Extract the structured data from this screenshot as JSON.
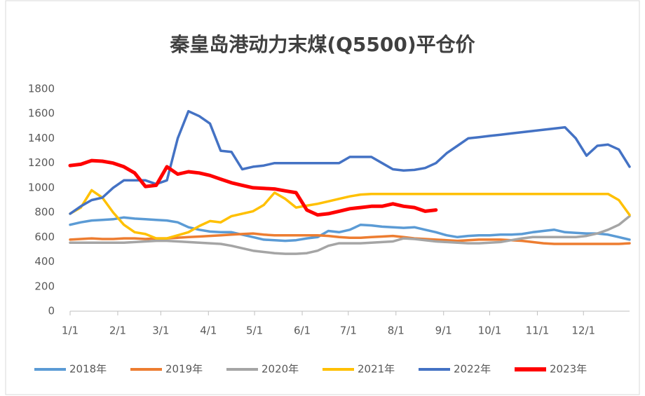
{
  "chart_data": {
    "type": "line",
    "title": "秦皇岛港动力末煤(Q5500)平仓价",
    "x": [
      0,
      7,
      14,
      21,
      28,
      35,
      42,
      49,
      56,
      63,
      70,
      77,
      84,
      91,
      98,
      105,
      112,
      119,
      126,
      133,
      140,
      147,
      154,
      161,
      168,
      175,
      182,
      189,
      196,
      203,
      210,
      217,
      224,
      231,
      238,
      245,
      252,
      259,
      266,
      273,
      280,
      287,
      294,
      301,
      308,
      315,
      322,
      329,
      336,
      343,
      350,
      357,
      364
    ],
    "xlim": [
      0,
      364
    ],
    "xticks": [
      {
        "value": 0,
        "label": "1/1"
      },
      {
        "value": 31,
        "label": "2/1"
      },
      {
        "value": 59,
        "label": "3/1"
      },
      {
        "value": 90,
        "label": "4/1"
      },
      {
        "value": 120,
        "label": "5/1"
      },
      {
        "value": 151,
        "label": "6/1"
      },
      {
        "value": 181,
        "label": "7/1"
      },
      {
        "value": 212,
        "label": "8/1"
      },
      {
        "value": 243,
        "label": "9/1"
      },
      {
        "value": 273,
        "label": "10/1"
      },
      {
        "value": 304,
        "label": "11/1"
      },
      {
        "value": 334,
        "label": "12/1"
      }
    ],
    "ylim": [
      0,
      1800
    ],
    "yticks": [
      0,
      200,
      400,
      600,
      800,
      1000,
      1200,
      1400,
      1600,
      1800
    ],
    "legend": "bottom",
    "series": [
      {
        "name": "2018年",
        "color": "#5b9bd5",
        "values": [
          700,
          720,
          735,
          740,
          745,
          760,
          750,
          745,
          740,
          735,
          720,
          680,
          660,
          645,
          640,
          640,
          620,
          600,
          580,
          575,
          570,
          575,
          590,
          600,
          650,
          640,
          660,
          700,
          695,
          685,
          680,
          675,
          680,
          660,
          640,
          615,
          600,
          610,
          615,
          615,
          620,
          620,
          625,
          640,
          650,
          660,
          640,
          635,
          630,
          630,
          620,
          600,
          580
        ]
      },
      {
        "name": "2019年",
        "color": "#ed7d31",
        "values": [
          580,
          585,
          590,
          585,
          585,
          590,
          590,
          585,
          590,
          590,
          595,
          600,
          605,
          610,
          615,
          620,
          625,
          630,
          620,
          615,
          615,
          615,
          615,
          615,
          610,
          600,
          595,
          595,
          600,
          605,
          610,
          600,
          590,
          585,
          580,
          575,
          570,
          575,
          580,
          580,
          580,
          575,
          570,
          560,
          550,
          545,
          545,
          545,
          545,
          545,
          545,
          545,
          550
        ]
      },
      {
        "name": "2020年",
        "color": "#a5a5a5",
        "values": [
          555,
          555,
          555,
          555,
          555,
          555,
          560,
          565,
          570,
          570,
          565,
          560,
          555,
          550,
          545,
          530,
          510,
          490,
          480,
          470,
          465,
          465,
          470,
          490,
          530,
          550,
          550,
          550,
          555,
          560,
          565,
          590,
          585,
          575,
          565,
          560,
          555,
          550,
          550,
          555,
          560,
          575,
          590,
          600,
          600,
          600,
          600,
          600,
          610,
          630,
          660,
          700,
          770
        ]
      },
      {
        "name": "2021年",
        "color": "#ffc000",
        "values": [
          790,
          840,
          980,
          920,
          800,
          700,
          640,
          625,
          590,
          590,
          615,
          640,
          690,
          730,
          720,
          770,
          790,
          810,
          860,
          960,
          910,
          840,
          855,
          870,
          890,
          910,
          930,
          945,
          950,
          950,
          950,
          950,
          950,
          950,
          950,
          950,
          950,
          950,
          950,
          950,
          950,
          950,
          950,
          950,
          950,
          950,
          950,
          950,
          950,
          950,
          950,
          900,
          780
        ]
      },
      {
        "name": "2022年",
        "color": "#4472c4",
        "values": [
          790,
          850,
          900,
          920,
          1000,
          1060,
          1060,
          1060,
          1030,
          1060,
          1400,
          1620,
          1580,
          1520,
          1300,
          1290,
          1150,
          1170,
          1180,
          1200,
          1200,
          1200,
          1200,
          1200,
          1200,
          1200,
          1250,
          1250,
          1250,
          1200,
          1150,
          1140,
          1145,
          1160,
          1200,
          1280,
          1340,
          1400,
          1410,
          1420,
          1430,
          1440,
          1450,
          1460,
          1470,
          1480,
          1490,
          1400,
          1260,
          1340,
          1350,
          1310,
          1170
        ]
      },
      {
        "name": "2023年",
        "color": "#ff0000",
        "values": [
          1180,
          1190,
          1220,
          1215,
          1200,
          1170,
          1120,
          1010,
          1020,
          1170,
          1110,
          1130,
          1120,
          1100,
          1070,
          1040,
          1020,
          1000,
          995,
          990,
          975,
          960,
          820,
          780,
          790,
          810,
          830,
          840,
          850,
          850,
          870,
          850,
          840,
          810,
          820,
          null,
          null,
          null,
          null,
          null,
          null,
          null,
          null,
          null,
          null,
          null,
          null,
          null,
          null,
          null,
          null,
          null,
          null
        ]
      }
    ]
  }
}
